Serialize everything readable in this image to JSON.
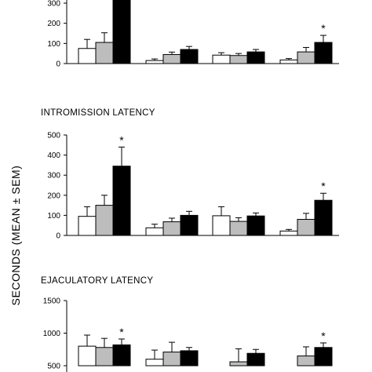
{
  "y_axis_label": "SECONDS (MEAN ± SEM)",
  "colors": {
    "white": "#ffffff",
    "gray": "#bdbdbd",
    "black": "#000000"
  },
  "chart_data": [
    {
      "type": "bar",
      "title": "",
      "groups": 4,
      "ylim": [
        0,
        300
      ],
      "yticks": [
        0,
        100,
        200,
        300
      ],
      "series": [
        {
          "fill": "white",
          "values": [
            75,
            15,
            42,
            18
          ],
          "errors": [
            45,
            8,
            12,
            7
          ]
        },
        {
          "fill": "gray",
          "values": [
            105,
            45,
            40,
            58
          ],
          "errors": [
            48,
            12,
            10,
            22
          ]
        },
        {
          "fill": "black",
          "values": [
            340,
            70,
            58,
            105
          ],
          "errors": [
            0,
            15,
            12,
            35
          ]
        }
      ],
      "significance": [
        {
          "group": 3,
          "series": 2,
          "label": "*"
        }
      ]
    },
    {
      "type": "bar",
      "title": "INTROMISSION LATENCY",
      "groups": 4,
      "ylim": [
        0,
        500
      ],
      "yticks": [
        0,
        100,
        200,
        300,
        400,
        500
      ],
      "series": [
        {
          "fill": "white",
          "values": [
            95,
            38,
            98,
            22
          ],
          "errors": [
            48,
            18,
            45,
            8
          ]
        },
        {
          "fill": "gray",
          "values": [
            150,
            68,
            70,
            80
          ],
          "errors": [
            50,
            18,
            18,
            30
          ]
        },
        {
          "fill": "black",
          "values": [
            345,
            100,
            97,
            175
          ],
          "errors": [
            95,
            20,
            15,
            35
          ]
        }
      ],
      "significance": [
        {
          "group": 0,
          "series": 2,
          "label": "*"
        },
        {
          "group": 3,
          "series": 2,
          "label": "*"
        }
      ]
    },
    {
      "type": "bar",
      "title": "EJACULATORY LATENCY",
      "groups": 4,
      "ylim": [
        500,
        1500
      ],
      "yticks": [
        500,
        1000,
        1500
      ],
      "series": [
        {
          "fill": "white",
          "values": [
            800,
            600,
            470,
            420
          ],
          "errors": [
            170,
            140,
            0,
            0
          ]
        },
        {
          "fill": "gray",
          "values": [
            780,
            710,
            560,
            650
          ],
          "errors": [
            140,
            150,
            200,
            140
          ]
        },
        {
          "fill": "black",
          "values": [
            820,
            730,
            690,
            780
          ],
          "errors": [
            90,
            50,
            60,
            70
          ]
        }
      ],
      "significance": [
        {
          "group": 0,
          "series": 2,
          "label": "*"
        },
        {
          "group": 3,
          "series": 2,
          "label": "*"
        }
      ]
    }
  ]
}
